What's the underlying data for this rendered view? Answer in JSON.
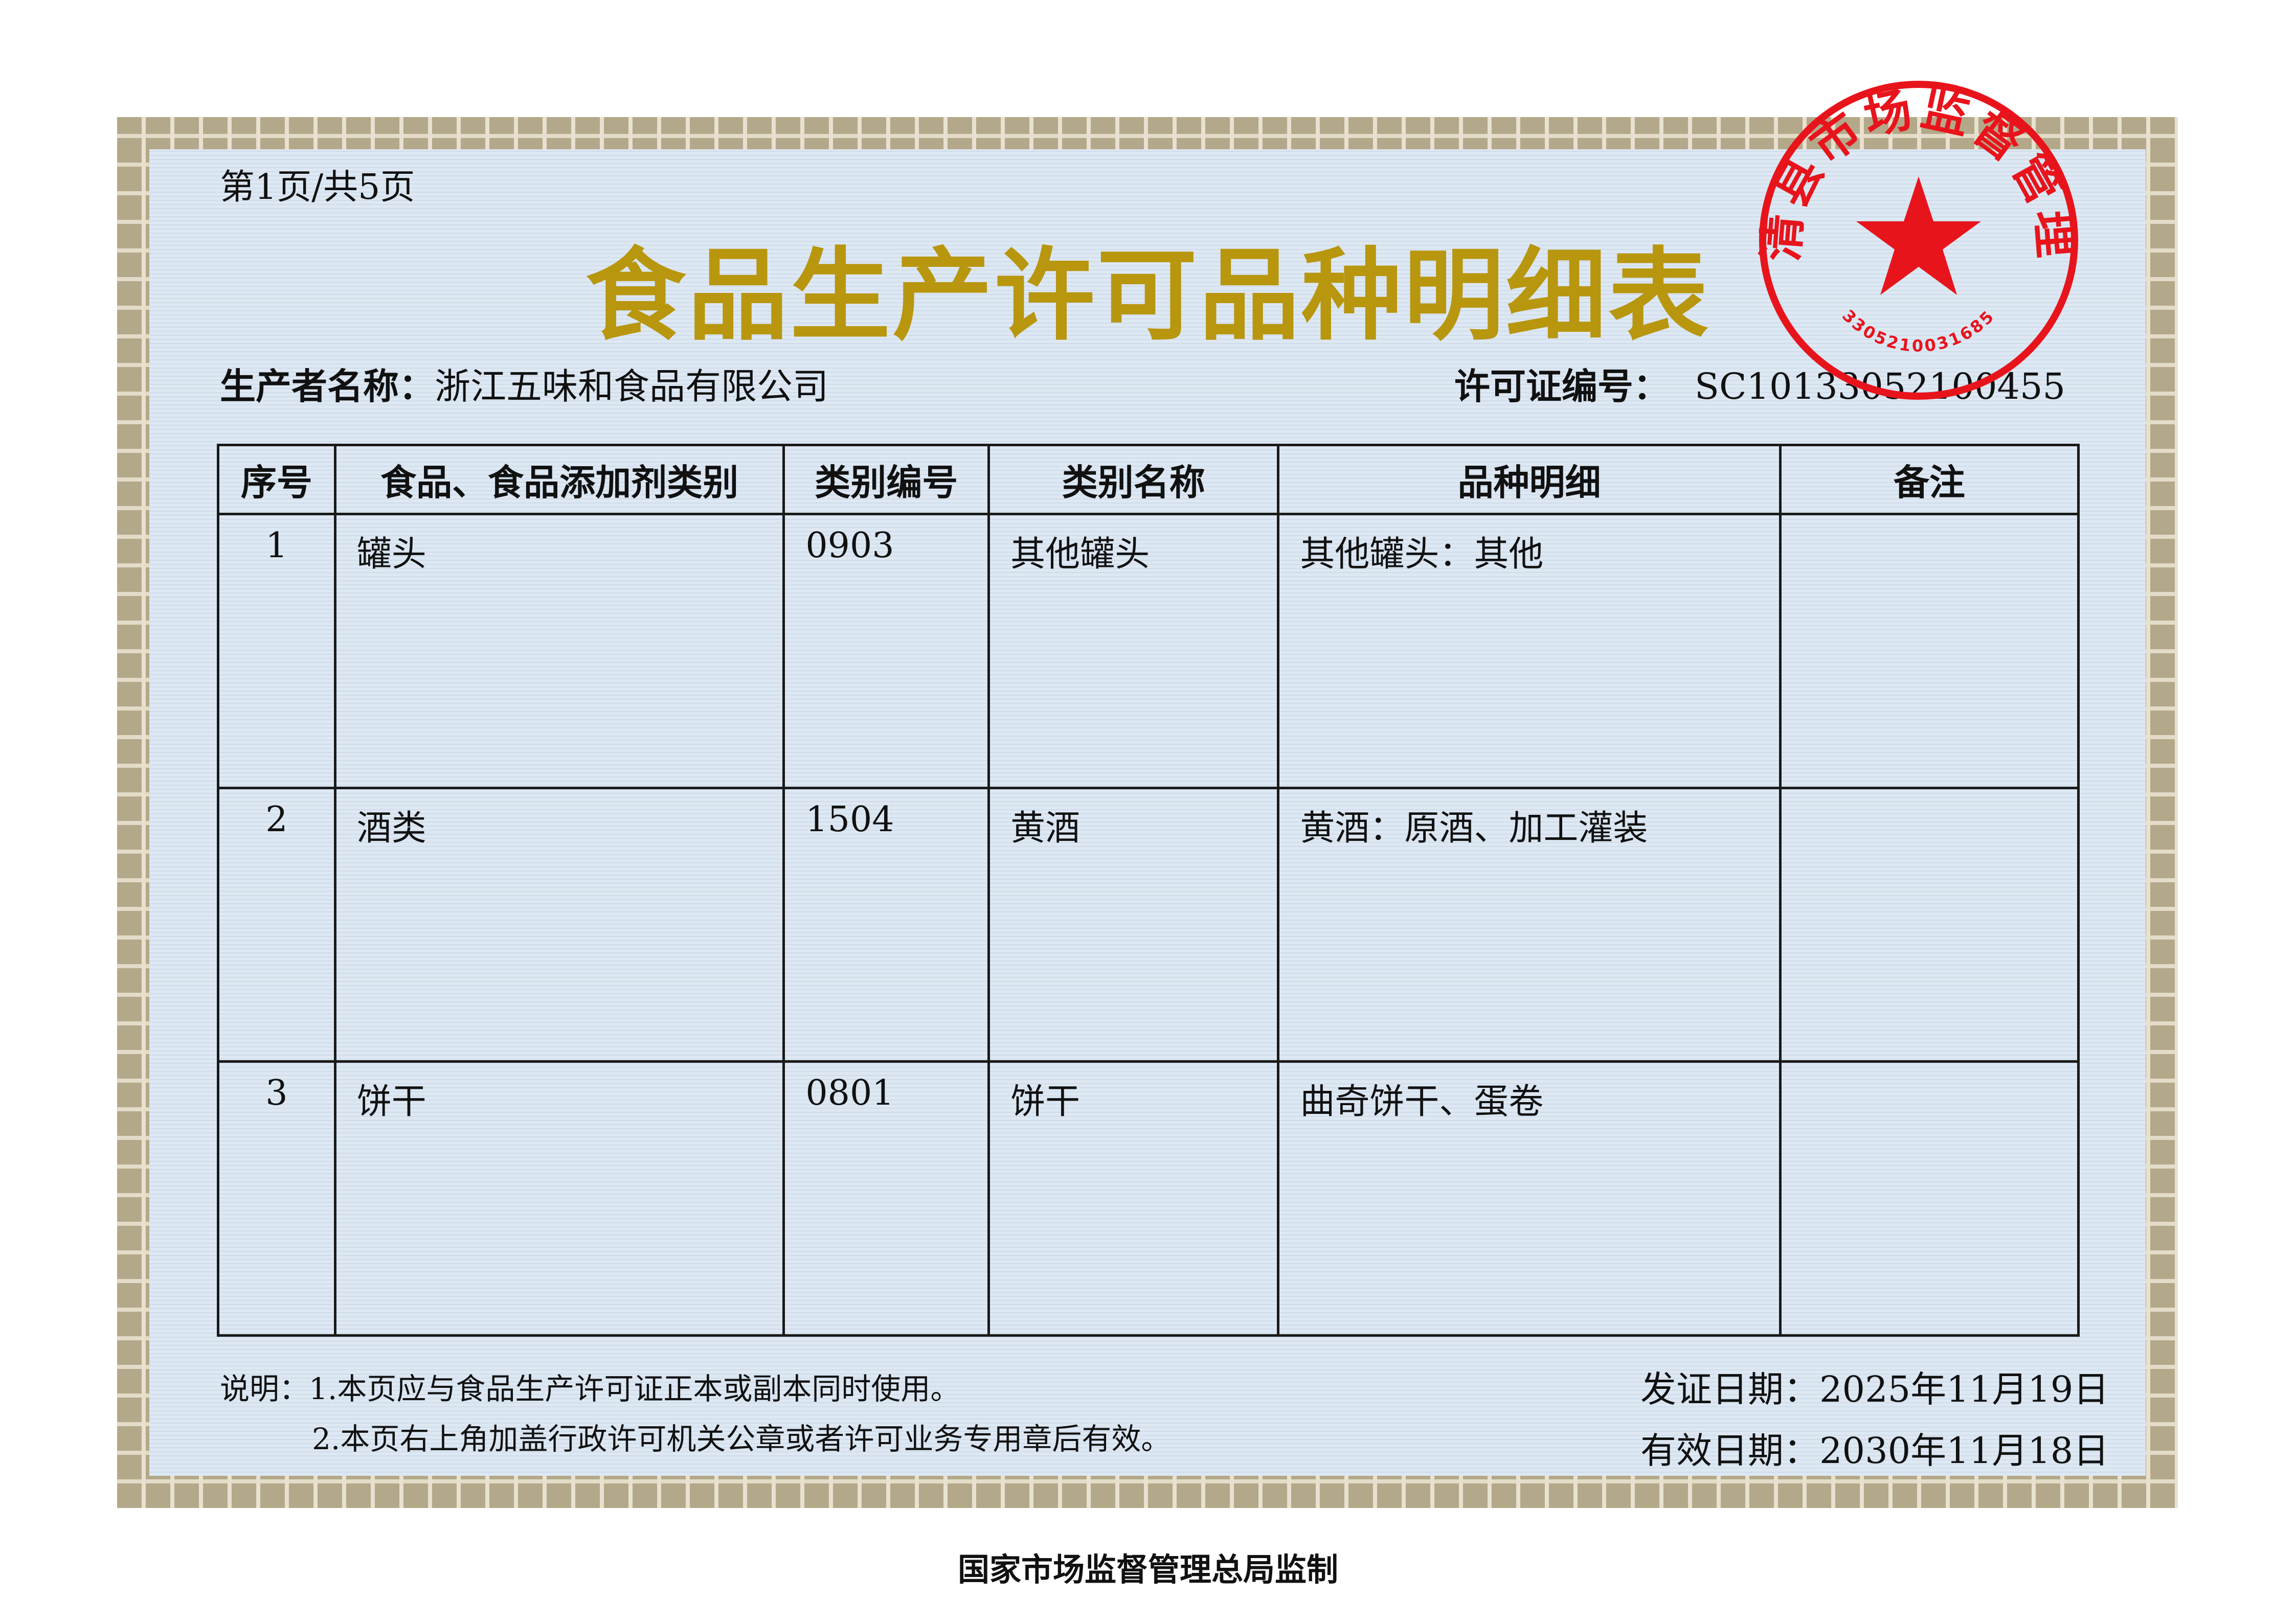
{
  "page_indicator": "第1页/共5页",
  "title": "食品生产许可品种明细表",
  "producer": {
    "label": "生产者名称：",
    "value": "浙江五味和食品有限公司"
  },
  "license": {
    "label": "许可证编号：",
    "value": "SC10133052100455"
  },
  "table": {
    "headers": [
      "序号",
      "食品、食品添加剂类别",
      "类别编号",
      "类别名称",
      "品种明细",
      "备注"
    ],
    "rows": [
      [
        "1",
        "罐头",
        "0903",
        "其他罐头",
        "其他罐头：其他",
        ""
      ],
      [
        "2",
        "酒类",
        "1504",
        "黄酒",
        "黄酒：原酒、加工灌装",
        ""
      ],
      [
        "3",
        "饼干",
        "0801",
        "饼干",
        "曲奇饼干、蛋卷",
        ""
      ]
    ]
  },
  "notes": {
    "prefix": "说明：",
    "line1": "1.本页应与食品生产许可证正本或副本同时使用。",
    "line2": "2.本页右上角加盖行政许可机关公章或者许可业务专用章后有效。"
  },
  "issue_date": {
    "label": "发证日期：",
    "value": "2025年11月19日"
  },
  "valid_date": {
    "label": "有效日期：",
    "value": "2030年11月18日"
  },
  "footer": "国家市场监督管理总局监制",
  "stamp": {
    "text": "德清县市场监督管理局",
    "code": "3305210031685",
    "color": "#e8141c"
  },
  "colors": {
    "title": "#b8960e",
    "background": "#dde8f3",
    "border": "#b4a88a"
  }
}
